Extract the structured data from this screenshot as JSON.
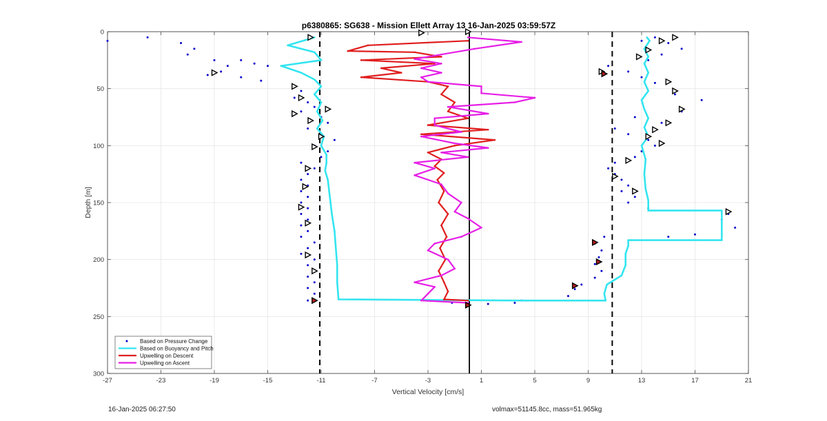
{
  "chart_data": {
    "type": "line",
    "title": "p6380865: SG638 - Mission Ellett Array 13 16-Jan-2025 03:59:57Z",
    "xlabel": "Vertical Velocity [cm/s]",
    "ylabel": "Depth [m]",
    "xlim": [
      -27,
      21
    ],
    "ylim": [
      0,
      300
    ],
    "y_reversed": true,
    "xticks": [
      -27,
      -23,
      -19,
      -15,
      -11,
      -7,
      -3,
      1,
      5,
      9,
      13,
      17,
      21
    ],
    "yticks": [
      0,
      50,
      100,
      150,
      200,
      250,
      300
    ],
    "grid": true,
    "legend_position": "bottom-left",
    "reference_lines": {
      "dashed_left_x": -11.1,
      "solid_x": 0.1,
      "dashed_right_x": 10.8
    },
    "series": [
      {
        "name": "Based on Pressure Change",
        "style": "dots",
        "color": "#0000cc",
        "descent_points": [
          [
            -27,
            8
          ],
          [
            -24,
            5
          ],
          [
            -21.5,
            10
          ],
          [
            -20.5,
            15
          ],
          [
            -21,
            20
          ],
          [
            -19,
            25
          ],
          [
            -18,
            30
          ],
          [
            -17,
            25
          ],
          [
            -16,
            28
          ],
          [
            -18.5,
            35
          ],
          [
            -19.5,
            38
          ],
          [
            -17,
            40
          ],
          [
            -15.5,
            43
          ],
          [
            -15,
            30
          ],
          [
            -13,
            48
          ],
          [
            -12.5,
            52
          ],
          [
            -13,
            58
          ],
          [
            -12,
            62
          ],
          [
            -11.5,
            66
          ],
          [
            -12.5,
            70
          ],
          [
            -11,
            75
          ],
          [
            -10.5,
            80
          ],
          [
            -12,
            85
          ],
          [
            -11,
            90
          ],
          [
            -10,
            95
          ],
          [
            -11.5,
            100
          ],
          [
            -10.5,
            105
          ],
          [
            -11,
            110
          ],
          [
            -12.5,
            115
          ],
          [
            -11.5,
            120
          ],
          [
            -12,
            125
          ],
          [
            -12.5,
            130
          ],
          [
            -12,
            135
          ],
          [
            -12.5,
            140
          ],
          [
            -12,
            145
          ],
          [
            -12.5,
            150
          ],
          [
            -12,
            155
          ],
          [
            -12.5,
            160
          ],
          [
            -12,
            165
          ],
          [
            -12.5,
            170
          ],
          [
            -12,
            175
          ],
          [
            -12.5,
            180
          ],
          [
            -11.5,
            185
          ],
          [
            -12,
            190
          ],
          [
            -12.5,
            195
          ],
          [
            -11.5,
            200
          ],
          [
            -12,
            205
          ],
          [
            -11.5,
            210
          ],
          [
            -12,
            215
          ],
          [
            -11.5,
            220
          ],
          [
            -12,
            225
          ],
          [
            -11.5,
            230
          ],
          [
            -12,
            236
          ]
        ],
        "ascent_points": [
          [
            -1.2,
            238
          ],
          [
            1.5,
            239
          ],
          [
            3.5,
            238
          ],
          [
            4,
            236
          ],
          [
            7.5,
            232
          ],
          [
            8,
            226
          ],
          [
            8.5,
            222
          ],
          [
            9.5,
            216
          ],
          [
            10,
            210
          ],
          [
            9.5,
            204
          ],
          [
            9.8,
            198
          ],
          [
            10,
            192
          ],
          [
            9.5,
            186
          ],
          [
            10.2,
            180
          ],
          [
            15,
            180
          ],
          [
            17,
            178
          ],
          [
            20,
            172
          ],
          [
            19,
            165
          ],
          [
            19.5,
            160
          ],
          [
            13.5,
            155
          ],
          [
            12,
            150
          ],
          [
            12.5,
            145
          ],
          [
            11.5,
            140
          ],
          [
            12,
            135
          ],
          [
            11.5,
            130
          ],
          [
            11,
            125
          ],
          [
            10.5,
            120
          ],
          [
            11,
            115
          ],
          [
            12.5,
            110
          ],
          [
            13,
            105
          ],
          [
            14,
            100
          ],
          [
            13.5,
            95
          ],
          [
            12,
            90
          ],
          [
            11,
            85
          ],
          [
            14.5,
            80
          ],
          [
            12.5,
            75
          ],
          [
            16,
            70
          ],
          [
            17.5,
            60
          ],
          [
            15.5,
            55
          ],
          [
            14,
            45
          ],
          [
            13,
            40
          ],
          [
            12,
            35
          ],
          [
            10.5,
            30
          ],
          [
            13.5,
            25
          ],
          [
            14.5,
            20
          ],
          [
            16,
            15
          ],
          [
            15,
            10
          ],
          [
            14,
            5
          ],
          [
            13,
            8
          ]
        ]
      },
      {
        "name": "Based on Buoyancy and Pitch",
        "style": "line",
        "color": "#33e5f0",
        "points": [
          [
            -11.5,
            5
          ],
          [
            -13.5,
            12
          ],
          [
            -11.5,
            18
          ],
          [
            -11,
            25
          ],
          [
            -14,
            30
          ],
          [
            -12.5,
            36
          ],
          [
            -11.5,
            42
          ],
          [
            -11,
            48
          ],
          [
            -11.5,
            55
          ],
          [
            -11,
            62
          ],
          [
            -11.3,
            70
          ],
          [
            -10.9,
            78
          ],
          [
            -11.3,
            85
          ],
          [
            -10.8,
            92
          ],
          [
            -11,
            100
          ],
          [
            -10.6,
            108
          ],
          [
            -10.6,
            115
          ],
          [
            -10.7,
            122
          ],
          [
            -10.5,
            130
          ],
          [
            -10.4,
            140
          ],
          [
            -10.3,
            150
          ],
          [
            -10.2,
            160
          ],
          [
            -10,
            175
          ],
          [
            -9.9,
            190
          ],
          [
            -9.8,
            205
          ],
          [
            -9.8,
            220
          ],
          [
            -9.7,
            235
          ],
          [
            4,
            236
          ],
          [
            9,
            236
          ],
          [
            10.3,
            236
          ],
          [
            10.2,
            230
          ],
          [
            10.4,
            222
          ],
          [
            11.5,
            214
          ],
          [
            11.8,
            205
          ],
          [
            11.8,
            195
          ],
          [
            12,
            188
          ],
          [
            12,
            183
          ],
          [
            19,
            183
          ],
          [
            19,
            157
          ],
          [
            13.5,
            157
          ],
          [
            13.5,
            148
          ],
          [
            13.3,
            138
          ],
          [
            13.2,
            125
          ],
          [
            13.3,
            112
          ],
          [
            13,
            100
          ],
          [
            13.5,
            92
          ],
          [
            13.2,
            84
          ],
          [
            13.5,
            76
          ],
          [
            13.2,
            68
          ],
          [
            13,
            60
          ],
          [
            13.5,
            52
          ],
          [
            13.2,
            44
          ],
          [
            13.5,
            36
          ],
          [
            13.2,
            28
          ],
          [
            13.5,
            22
          ],
          [
            13.2,
            15
          ],
          [
            13.6,
            8
          ],
          [
            13.4,
            5
          ]
        ]
      },
      {
        "name": "Upwelling on Descent",
        "style": "line",
        "color": "#e01e1e",
        "points": [
          [
            0,
            8
          ],
          [
            -7.5,
            12
          ],
          [
            -9,
            17
          ],
          [
            -4,
            18
          ],
          [
            -2,
            22
          ],
          [
            -8,
            25
          ],
          [
            -2.5,
            28
          ],
          [
            -6.5,
            32
          ],
          [
            -5,
            36
          ],
          [
            -8,
            40
          ],
          [
            -3,
            44
          ],
          [
            -1.5,
            48
          ],
          [
            -2,
            55
          ],
          [
            -1,
            62
          ],
          [
            -1.5,
            70
          ],
          [
            0,
            76
          ],
          [
            -3,
            82
          ],
          [
            1.5,
            86
          ],
          [
            -3.5,
            90
          ],
          [
            2,
            95
          ],
          [
            -1,
            100
          ],
          [
            -3,
            106
          ],
          [
            -2,
            112
          ],
          [
            -2.5,
            118
          ],
          [
            -1.8,
            124
          ],
          [
            -2.3,
            130
          ],
          [
            -1.8,
            140
          ],
          [
            -2.2,
            150
          ],
          [
            -1.5,
            160
          ],
          [
            -2,
            170
          ],
          [
            -1.6,
            180
          ],
          [
            -2.1,
            190
          ],
          [
            -1.7,
            200
          ],
          [
            -2.2,
            210
          ],
          [
            -1.8,
            220
          ],
          [
            -1.5,
            228
          ],
          [
            -1.8,
            235
          ],
          [
            0,
            236
          ]
        ]
      },
      {
        "name": "Upwelling on Ascent",
        "style": "line",
        "color": "#e61ee6",
        "points": [
          [
            0,
            238
          ],
          [
            -3.5,
            236
          ],
          [
            -3,
            230
          ],
          [
            -2.5,
            224
          ],
          [
            -4,
            220
          ],
          [
            -2,
            214
          ],
          [
            -1,
            208
          ],
          [
            -1.5,
            200
          ],
          [
            -3,
            192
          ],
          [
            -2.5,
            186
          ],
          [
            -0.5,
            180
          ],
          [
            1,
            172
          ],
          [
            0,
            164
          ],
          [
            -1,
            158
          ],
          [
            -0.5,
            150
          ],
          [
            -1.5,
            142
          ],
          [
            -2,
            134
          ],
          [
            -4,
            126
          ],
          [
            -2.5,
            120
          ],
          [
            -4,
            115
          ],
          [
            0,
            110
          ],
          [
            -2,
            106
          ],
          [
            1.5,
            102
          ],
          [
            -1,
            98
          ],
          [
            -3.5,
            92
          ],
          [
            -0.5,
            88
          ],
          [
            -2.5,
            82
          ],
          [
            -2.5,
            76
          ],
          [
            1.5,
            72
          ],
          [
            -1.5,
            66
          ],
          [
            3.5,
            62
          ],
          [
            5,
            58
          ],
          [
            1,
            54
          ],
          [
            1,
            48
          ],
          [
            -3,
            44
          ],
          [
            -3.5,
            40
          ],
          [
            -2,
            36
          ],
          [
            -3.5,
            32
          ],
          [
            -2,
            28
          ],
          [
            -4,
            24
          ],
          [
            -2,
            20
          ],
          [
            0.5,
            15
          ],
          [
            4,
            9
          ],
          [
            0,
            5
          ]
        ]
      }
    ],
    "markers": {
      "shape": "open-triangle",
      "points": [
        [
          -11.8,
          5
        ],
        [
          -3.5,
          1
        ],
        [
          0,
          0
        ],
        [
          -19,
          36
        ],
        [
          -13,
          48
        ],
        [
          -12.5,
          58
        ],
        [
          -13,
          72
        ],
        [
          -10.5,
          68
        ],
        [
          -11.8,
          78
        ],
        [
          -11,
          92
        ],
        [
          -11.5,
          101
        ],
        [
          -12,
          120
        ],
        [
          -12.2,
          136
        ],
        [
          -12.5,
          154
        ],
        [
          -12,
          168
        ],
        [
          -12,
          196
        ],
        [
          -11.5,
          210
        ],
        [
          14.5,
          8
        ],
        [
          15.5,
          5
        ],
        [
          13.5,
          16
        ],
        [
          12.8,
          22
        ],
        [
          10,
          35
        ],
        [
          15,
          44
        ],
        [
          15.5,
          52
        ],
        [
          16,
          68
        ],
        [
          15,
          80
        ],
        [
          14,
          86
        ],
        [
          13.5,
          92
        ],
        [
          14.5,
          98
        ],
        [
          12,
          113
        ],
        [
          11,
          127
        ],
        [
          12.5,
          140
        ],
        [
          19.5,
          158
        ]
      ]
    },
    "filled_markers": {
      "shape": "filled-triangle",
      "color": "#b41e1e",
      "points": [
        [
          -11.5,
          236
        ],
        [
          0,
          240
        ],
        [
          10.2,
          37
        ],
        [
          9.5,
          185
        ],
        [
          9.8,
          202
        ],
        [
          8,
          223
        ]
      ]
    }
  },
  "legend": {
    "items": [
      {
        "label": "Based on Pressure Change",
        "color": "#0000cc",
        "style": "dot"
      },
      {
        "label": "Based on Buoyancy and Pitch",
        "color": "#33e5f0",
        "style": "line"
      },
      {
        "label": "Upwelling on Descent",
        "color": "#e01e1e",
        "style": "line"
      },
      {
        "label": "Upwelling on Ascent",
        "color": "#e61ee6",
        "style": "line"
      }
    ]
  },
  "footer": {
    "timestamp": "16-Jan-2025 06:27:50",
    "stats": "volmax=51145.8cc, mass=51.965kg"
  }
}
